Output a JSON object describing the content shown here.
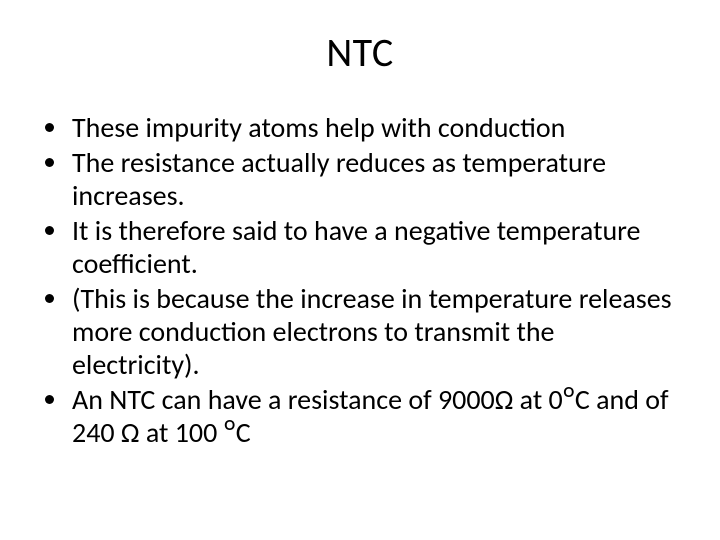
{
  "slide": {
    "title": "NTC",
    "bullets": [
      "These impurity atoms help with conduction",
      "The resistance actually reduces as temperature increases.",
      "It is therefore said to have a negative temperature coefficient.",
      "(This is because the increase in temperature releases more conduction electrons to transmit the electricity).",
      "An NTC can have a resistance of 9000Ω at 0ᴼC and of 240 Ω at 100 ᴼC"
    ],
    "style": {
      "background_color": "#ffffff",
      "text_color": "#000000",
      "title_fontsize": 40,
      "body_fontsize": 28,
      "font_family": "Calibri",
      "bullet_marker": "disc"
    }
  }
}
